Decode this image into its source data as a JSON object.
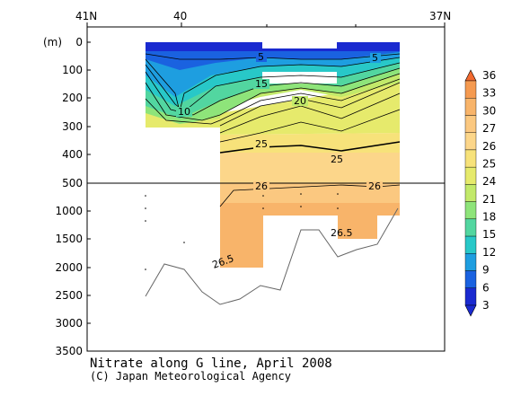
{
  "chart_data": {
    "type": "heatmap",
    "title": "Nitrate along G line, April 2008",
    "credit": "(C) Japan Meteorological Agency",
    "ylabel": "(m)",
    "top_labels": [
      "41N",
      "40",
      "37N"
    ],
    "y_ticks_upper": [
      "0",
      "100",
      "200",
      "300",
      "400",
      "500"
    ],
    "y_ticks_lower": [
      "1000",
      "1500",
      "2000",
      "2500",
      "3000",
      "3500"
    ],
    "colorbar": {
      "levels": [
        "36",
        "33",
        "30",
        "27",
        "26",
        "25",
        "24",
        "21",
        "18",
        "15",
        "12",
        "9",
        "6",
        "3"
      ],
      "colors": [
        "#f26a30",
        "#f59a50",
        "#f8b46a",
        "#fbc880",
        "#fcd68a",
        "#f7e27a",
        "#e6ea6c",
        "#c2e96a",
        "#8ee47a",
        "#52d6a0",
        "#28c8c8",
        "#1e9ee0",
        "#1a62e0",
        "#1a2ad0"
      ]
    },
    "contour_labels": [
      "5",
      "5",
      "15",
      "20",
      "10",
      "25",
      "25",
      "26",
      "26",
      "26.5",
      "26.5"
    ],
    "bottom_depth_m": [
      2550,
      1980,
      2040,
      2450,
      2650,
      2560,
      2340,
      2420,
      1550,
      1540,
      1850,
      1700,
      1620,
      950
    ]
  }
}
